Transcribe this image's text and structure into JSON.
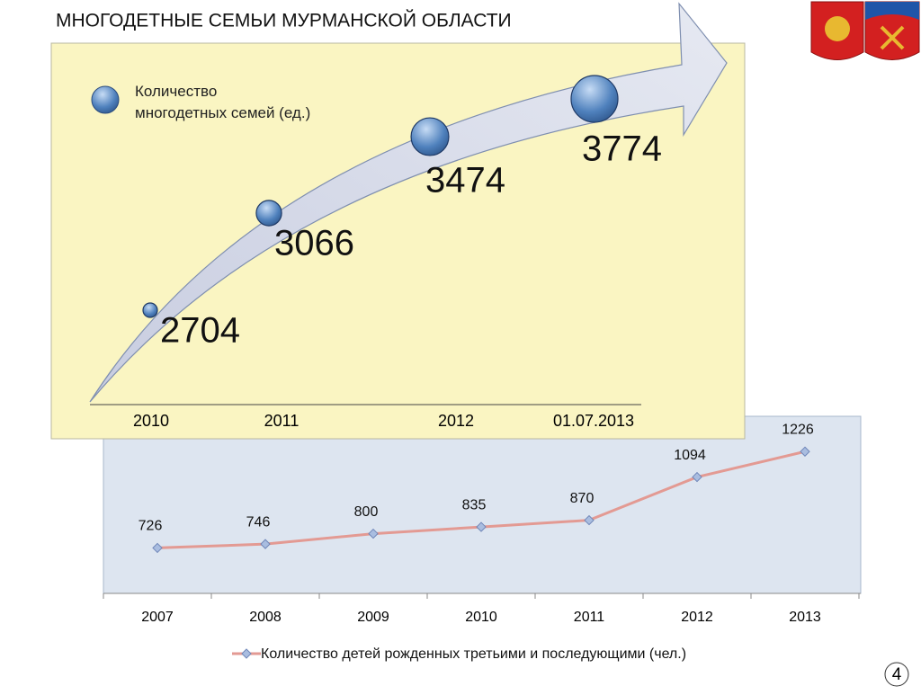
{
  "title": "МНОГОДЕТНЫЕ СЕМЬИ МУРМАНСКОЙ ОБЛАСТИ",
  "page_number": "4",
  "chart_data": [
    {
      "type": "bubble",
      "categories": [
        "2010",
        "2011",
        "2012",
        "01.07.2013"
      ],
      "series": [
        {
          "name": "Количество\nмногодетных семей (ед.)",
          "color": "#4f81bd",
          "values": [
            2704,
            3066,
            3474,
            3774
          ]
        }
      ]
    },
    {
      "type": "line",
      "categories": [
        "2007",
        "2008",
        "2009",
        "2010",
        "2011",
        "2012",
        "2013"
      ],
      "series": [
        {
          "name": "Количество детей рожденных третьими и последующими (чел.)",
          "color": "#e39a93",
          "marker_color": "#a9bde0",
          "values": [
            726,
            746,
            800,
            835,
            870,
            1094,
            1226
          ]
        }
      ],
      "ylim": [
        490,
        1400
      ]
    }
  ]
}
